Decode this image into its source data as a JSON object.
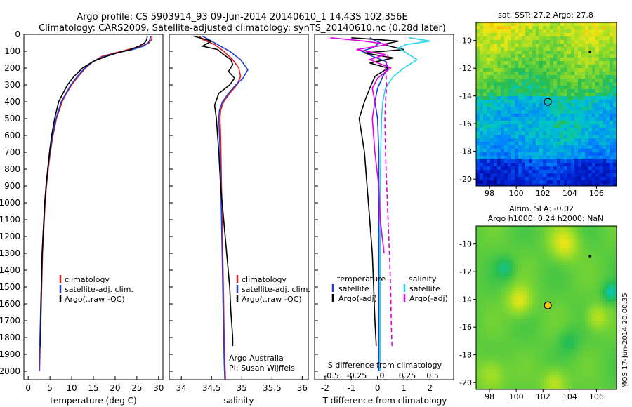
{
  "title_line1": "Argo profile: CS 5903914_93 09-Jun-2014 20140610_1 14.43S 102.356E",
  "title_line2": "Climatology: CARS2009. Satellite-adjusted climatology: synTS_20140610.nc (0.28d later)",
  "side_stamp": "IMOS 17-Jun-2014 20:00:35",
  "colors": {
    "climatology": "#e41a1c",
    "satellite": "#1f3fd6",
    "argo": "#000000",
    "sat_salinity": "#22d3ee",
    "argo_salinity_adj": "#e000e0"
  },
  "chart_data": [
    {
      "type": "line",
      "name": "temperature-profile",
      "xlabel": "temperature (deg C)",
      "ylabel": "",
      "xlim": [
        -1,
        31
      ],
      "ylim": [
        2050,
        0
      ],
      "xticks": [
        "0",
        "5",
        "10",
        "15",
        "20",
        "25",
        "30"
      ],
      "yticks": [
        "0",
        "100",
        "200",
        "300",
        "400",
        "500",
        "600",
        "700",
        "800",
        "900",
        "1000",
        "1100",
        "1200",
        "1300",
        "1400",
        "1500",
        "1600",
        "1700",
        "1800",
        "1900",
        "2000"
      ],
      "legend": [
        "climatology",
        "satellite-adj. clim.",
        "Argo(..raw -QC)"
      ],
      "series": [
        {
          "name": "climatology",
          "color": "#e41a1c",
          "x": [
            28.5,
            28.4,
            27.8,
            26,
            23,
            20,
            17,
            15,
            13.2,
            11.5,
            10,
            8.8,
            7.8,
            6.5,
            5.7,
            5.1,
            4.6,
            4.2,
            3.9,
            3.7,
            3.5,
            3.3,
            3.2,
            3.1,
            3.0,
            2.9,
            2.8,
            2.7,
            2.6
          ],
          "y": [
            10,
            30,
            50,
            70,
            90,
            110,
            130,
            160,
            200,
            250,
            300,
            350,
            400,
            500,
            600,
            700,
            800,
            900,
            1000,
            1100,
            1200,
            1300,
            1400,
            1500,
            1600,
            1700,
            1800,
            1900,
            2000
          ]
        },
        {
          "name": "satellite-adj. clim.",
          "color": "#1f3fd6",
          "x": [
            28.2,
            28.0,
            27.6,
            26.5,
            24,
            20.5,
            17.5,
            15,
            13,
            11.3,
            9.8,
            8.7,
            7.6,
            6.4,
            5.6,
            5.0,
            4.5,
            4.1,
            3.8,
            3.6,
            3.4,
            3.2,
            3.1,
            3.0,
            2.9,
            2.8,
            2.7,
            2.6,
            2.5
          ],
          "y": [
            10,
            30,
            50,
            70,
            90,
            110,
            130,
            160,
            200,
            250,
            300,
            350,
            400,
            500,
            600,
            700,
            800,
            900,
            1000,
            1100,
            1200,
            1300,
            1400,
            1500,
            1600,
            1700,
            1800,
            1900,
            2000
          ]
        },
        {
          "name": "Argo(..raw -QC)",
          "color": "#000000",
          "x": [
            27.4,
            27.3,
            26.8,
            25.5,
            23.5,
            20.5,
            18,
            15,
            12.5,
            10.5,
            9,
            8,
            7,
            6.1,
            5.4,
            4.9,
            4.5,
            4.1,
            3.8,
            3.6,
            3.4,
            3.2,
            3.1,
            3.0,
            2.95,
            2.9
          ],
          "y": [
            10,
            30,
            50,
            70,
            90,
            110,
            130,
            160,
            200,
            250,
            300,
            350,
            400,
            500,
            600,
            700,
            800,
            900,
            1000,
            1100,
            1200,
            1300,
            1400,
            1500,
            1600,
            1850
          ]
        }
      ]
    },
    {
      "type": "line",
      "name": "salinity-profile",
      "xlabel": "salinity",
      "xlim": [
        33.8,
        36.1
      ],
      "ylim": [
        2050,
        0
      ],
      "xticks": [
        "34",
        "34.5",
        "35",
        "35.5",
        "36"
      ],
      "legend": [
        "climatology",
        "satellite-adj. clim.",
        "Argo(..raw -QC)"
      ],
      "annotation_line1": "Argo Australia",
      "annotation_line2": "PI: Susan Wijffels",
      "series": [
        {
          "name": "climatology",
          "color": "#e41a1c",
          "x": [
            34.3,
            34.35,
            34.55,
            34.7,
            34.85,
            34.95,
            34.98,
            34.92,
            34.8,
            34.7,
            34.65,
            34.64,
            34.65,
            34.66,
            34.67,
            34.68,
            34.69,
            34.7,
            34.71,
            34.72,
            34.73
          ],
          "y": [
            10,
            30,
            60,
            100,
            150,
            200,
            250,
            300,
            350,
            400,
            450,
            500,
            600,
            800,
            1000,
            1200,
            1400,
            1600,
            1800,
            1950,
            2050
          ]
        },
        {
          "name": "satellite-adj. clim.",
          "color": "#1f3fd6",
          "x": [
            34.35,
            34.45,
            34.6,
            34.8,
            34.98,
            35.1,
            35.02,
            34.9,
            34.78,
            34.68,
            34.63,
            34.62,
            34.63,
            34.65,
            34.66,
            34.67,
            34.68,
            34.69,
            34.7,
            34.71,
            34.72
          ],
          "y": [
            10,
            30,
            60,
            100,
            150,
            210,
            260,
            300,
            350,
            400,
            450,
            500,
            600,
            800,
            1000,
            1200,
            1400,
            1600,
            1800,
            1950,
            2050
          ]
        },
        {
          "name": "Argo(..raw -QC)",
          "color": "#000000",
          "x": [
            34.2,
            34.5,
            34.35,
            34.6,
            34.7,
            34.82,
            34.85,
            34.78,
            34.88,
            34.8,
            34.62,
            34.55,
            34.58,
            34.62,
            34.65,
            34.7,
            34.75,
            34.8,
            34.82,
            34.85,
            34.85
          ],
          "y": [
            10,
            40,
            70,
            90,
            120,
            150,
            180,
            220,
            260,
            300,
            350,
            420,
            500,
            700,
            900,
            1100,
            1300,
            1500,
            1650,
            1800,
            1850
          ]
        }
      ]
    },
    {
      "type": "line",
      "name": "difference-profile",
      "xlabel": "T difference from climatology",
      "xlabel_top": "S difference from climatology",
      "xlim": [
        -2.4,
        2.9
      ],
      "ylim": [
        2050,
        0
      ],
      "xticks": [
        "-2",
        "-1",
        "0",
        "1",
        "2"
      ],
      "xticks_top": [
        "-0.5",
        "-0.25",
        "0",
        "0.25",
        "0.5"
      ],
      "legend_temperature_title": "temperature",
      "legend_salinity_title": "salinity",
      "legend": [
        "satellite",
        "Argo(-adj)",
        "satellite",
        "Argo(-adj)"
      ],
      "series": [
        {
          "name": "temperature satellite",
          "color": "#1f3fd6",
          "x": [
            -0.3,
            0.1,
            -0.2,
            -0.6,
            -0.2,
            0.3,
            0.4,
            0.2,
            0.0,
            -0.1,
            0.0,
            0.05,
            0.05,
            0.05,
            0.05,
            0.05,
            0.05
          ],
          "y": [
            20,
            50,
            80,
            100,
            130,
            160,
            200,
            250,
            320,
            400,
            500,
            700,
            1000,
            1300,
            1600,
            1800,
            2000
          ]
        },
        {
          "name": "temperature Argo(-adj)",
          "color": "#000000",
          "x": [
            -1.0,
            0.8,
            0.2,
            1.0,
            -0.5,
            0.6,
            -0.3,
            0.4,
            -0.1,
            -0.3,
            -0.5,
            -0.7,
            -0.5,
            -0.4,
            -0.3,
            -0.2,
            -0.15,
            -0.1,
            -0.05
          ],
          "y": [
            20,
            40,
            60,
            90,
            110,
            140,
            170,
            200,
            250,
            320,
            400,
            500,
            700,
            900,
            1100,
            1300,
            1500,
            1700,
            1850
          ]
        },
        {
          "name": "salinity satellite",
          "color": "#22d3ee",
          "x": [
            1.2,
            2.0,
            1.1,
            0.8,
            1.1,
            1.5,
            1.0,
            0.6,
            0.3,
            0.2,
            0.15,
            0.12,
            0.1,
            0.1,
            0.1,
            0.1,
            0.1
          ],
          "y": [
            20,
            40,
            60,
            80,
            110,
            150,
            200,
            250,
            320,
            400,
            500,
            700,
            1000,
            1300,
            1600,
            1800,
            2000
          ]
        },
        {
          "name": "salinity Argo(-adj)",
          "color": "#e000e0",
          "x": [
            -1.8,
            -0.5,
            0.4,
            -0.8,
            0.3,
            -0.3,
            0.5,
            0.0,
            -0.2,
            -0.1,
            -0.2,
            -0.1,
            0.05,
            0.1,
            0.25
          ],
          "y": [
            20,
            40,
            60,
            90,
            120,
            150,
            200,
            260,
            320,
            400,
            500,
            700,
            900,
            1100,
            1300
          ]
        },
        {
          "name": "salinity Argo(-adj) deep",
          "color": "#e000e0",
          "dashed": true,
          "x": [
            0.4,
            0.3,
            0.35,
            0.3,
            0.28,
            0.3,
            0.35,
            0.4,
            0.45,
            0.5,
            0.52,
            0.55
          ],
          "y": [
            120,
            200,
            300,
            400,
            500,
            700,
            900,
            1100,
            1300,
            1500,
            1700,
            1850
          ]
        }
      ]
    },
    {
      "type": "heatmap",
      "name": "sst-map",
      "title": "sat. SST: 27.2  Argo: 27.8",
      "xlim": [
        97,
        107.5
      ],
      "ylim": [
        -20.5,
        -8.7
      ],
      "xticks": [
        "98",
        "100",
        "102",
        "104",
        "106"
      ],
      "yticks": [
        "-10",
        "-12",
        "-14",
        "-16",
        "-18",
        "-20"
      ],
      "argo_position": [
        102.36,
        -14.43
      ]
    },
    {
      "type": "heatmap",
      "name": "sla-map",
      "title_line1": "Altim. SLA: -0.02",
      "title_line2": "Argo h1000: 0.24  h2000: NaN",
      "xlim": [
        97,
        107.5
      ],
      "ylim": [
        -20.5,
        -8.7
      ],
      "xticks": [
        "98",
        "100",
        "102",
        "104",
        "106"
      ],
      "yticks": [
        "-10",
        "-12",
        "-14",
        "-16",
        "-18",
        "-20"
      ],
      "argo_position": [
        102.36,
        -14.43
      ]
    }
  ]
}
